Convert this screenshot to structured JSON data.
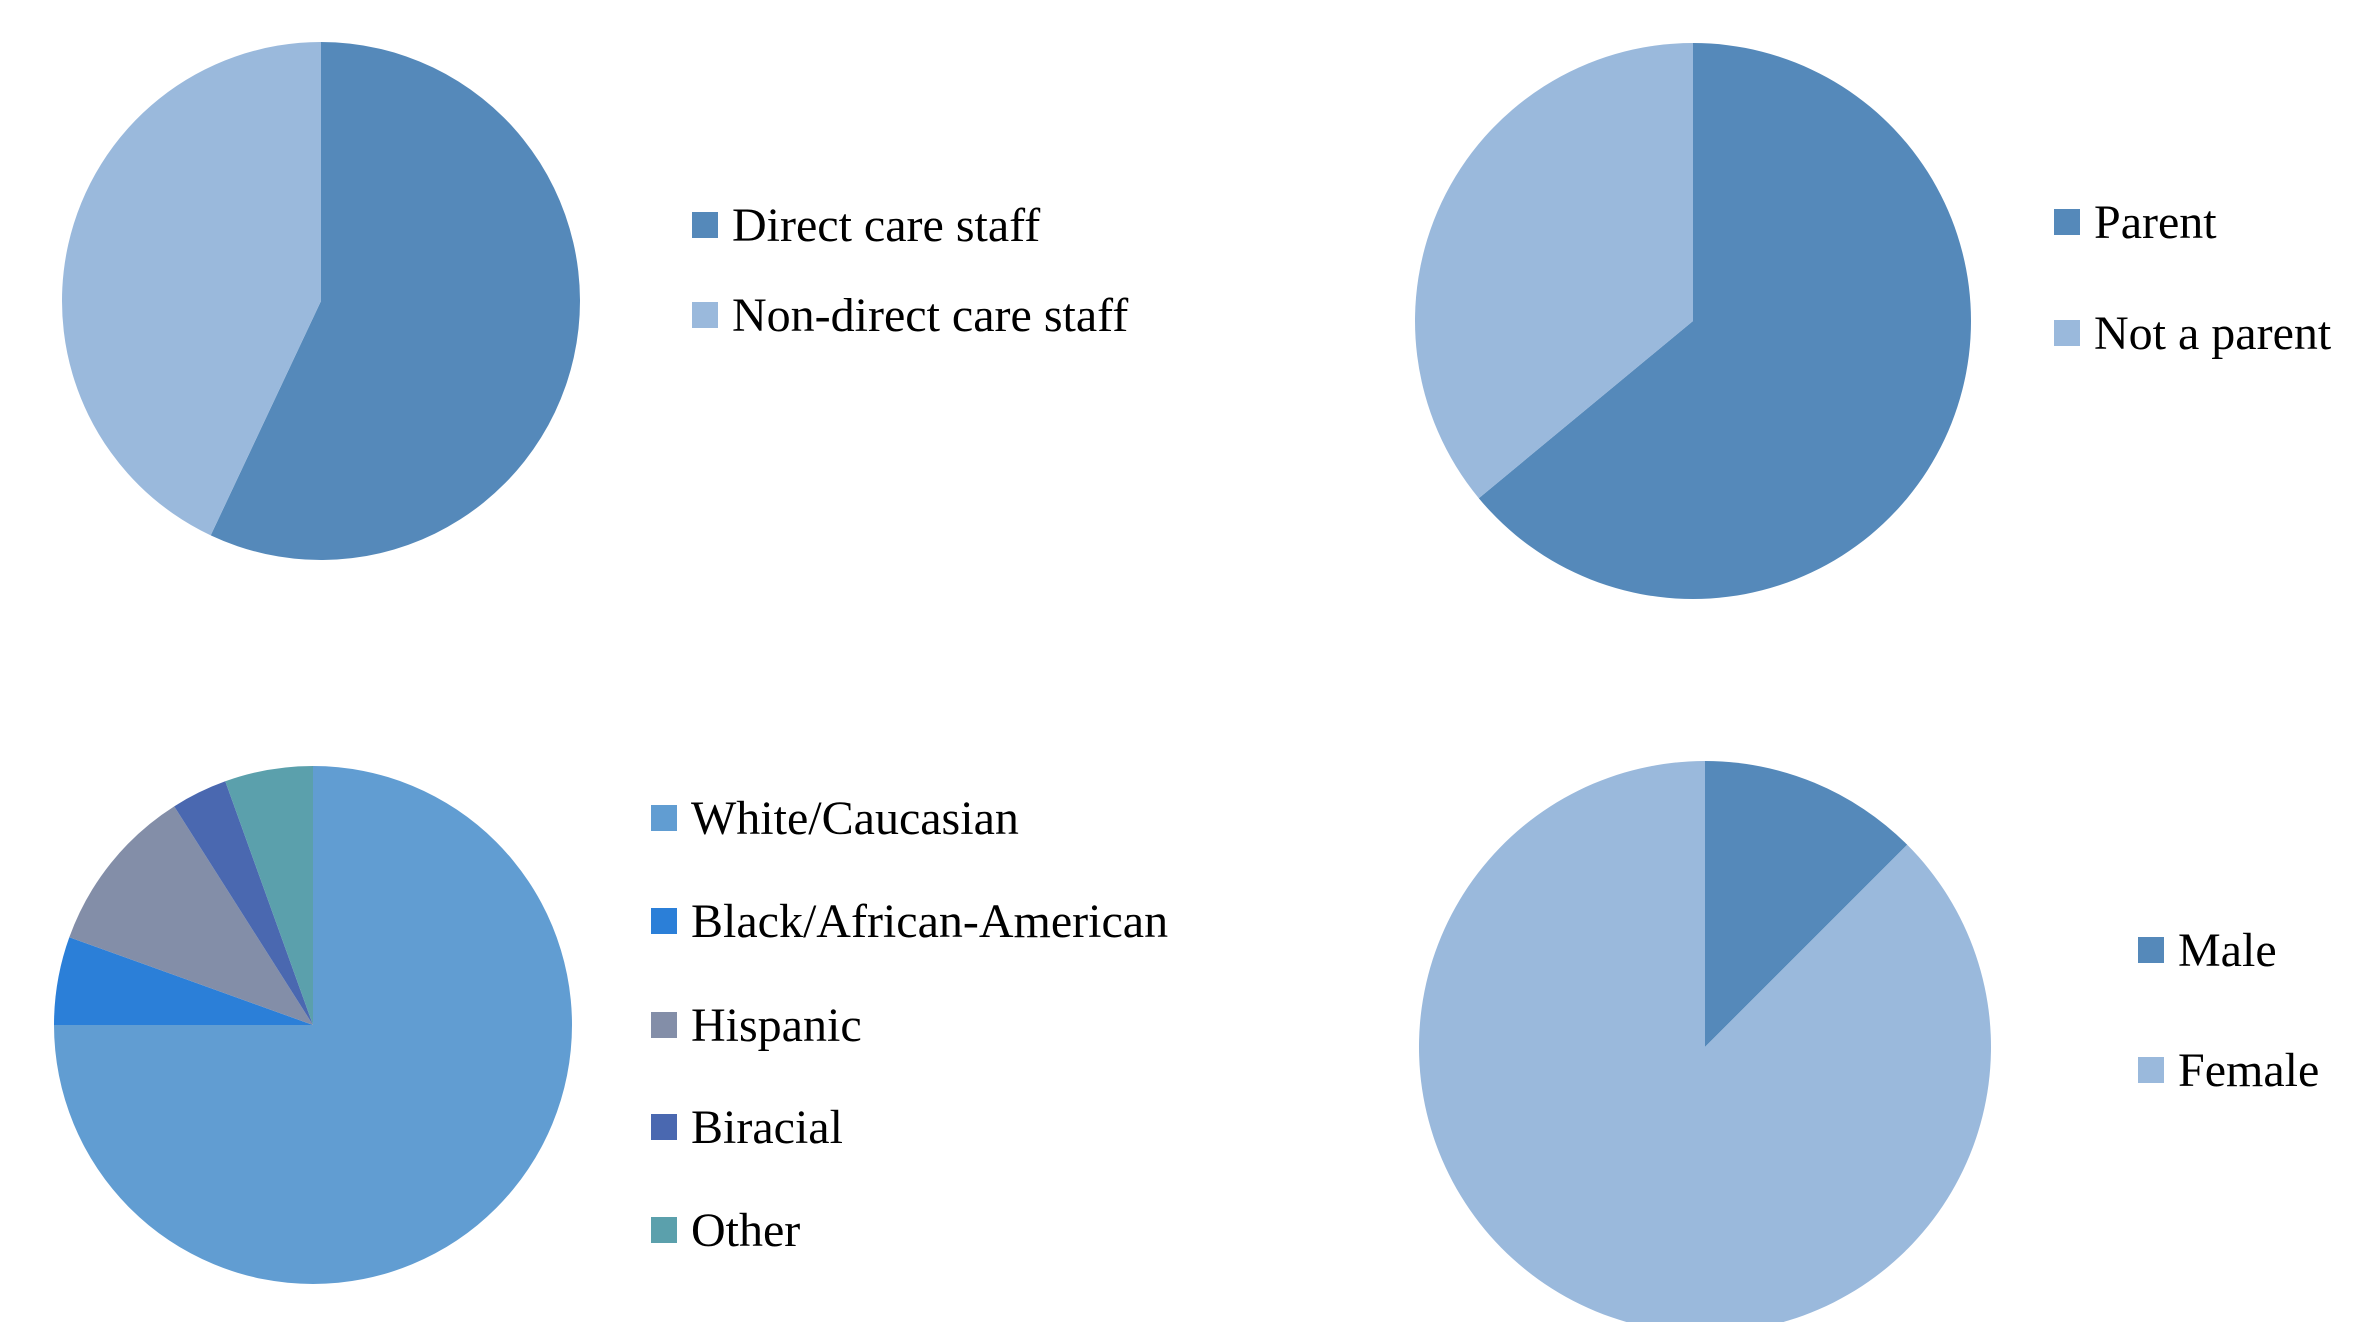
{
  "chart_data": [
    {
      "type": "pie",
      "title": "",
      "legend_position": "right",
      "series": [
        {
          "labels": [
            "Direct care staff",
            "Non-direct care staff"
          ],
          "values": [
            57,
            43
          ],
          "colors": [
            "#5589ba",
            "#9ab9dc"
          ]
        }
      ]
    },
    {
      "type": "pie",
      "title": "",
      "legend_position": "right",
      "series": [
        {
          "labels": [
            "Parent",
            "Not a parent"
          ],
          "values": [
            64,
            36
          ],
          "colors": [
            "#5589ba",
            "#9ab9dc"
          ]
        }
      ]
    },
    {
      "type": "pie",
      "title": "",
      "legend_position": "right",
      "series": [
        {
          "labels": [
            "White/Caucasian",
            "Black/African-American",
            "Hispanic",
            "Biracial",
            "Other"
          ],
          "values": [
            75,
            5.5,
            10.5,
            3.5,
            5.5
          ],
          "colors": [
            "#619dd2",
            "#2b7fd8",
            "#838ea8",
            "#4a68b0",
            "#5ba0ac"
          ]
        }
      ]
    },
    {
      "type": "pie",
      "title": "",
      "legend_position": "right",
      "series": [
        {
          "labels": [
            "Male",
            "Female"
          ],
          "values": [
            12.5,
            87.5
          ],
          "colors": [
            "#5589ba",
            "#9ab9dc"
          ]
        }
      ]
    }
  ]
}
